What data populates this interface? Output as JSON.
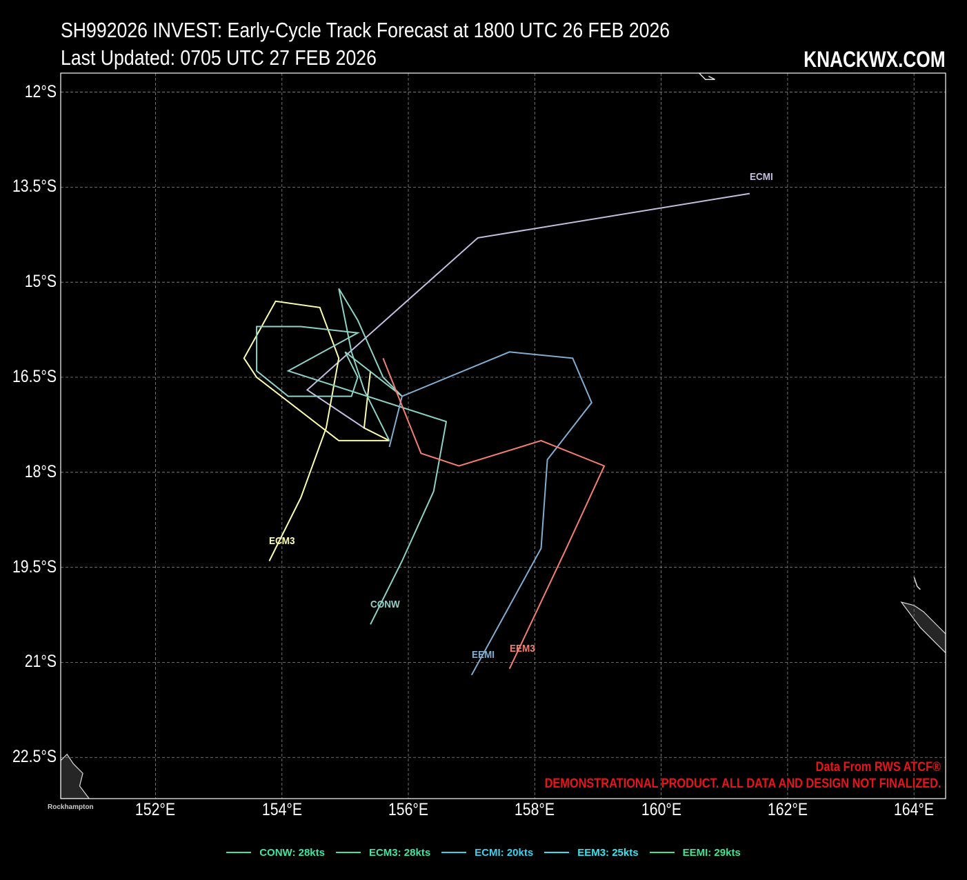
{
  "header": {
    "title_line1": "SH992026 INVEST: Early-Cycle Track Forecast at 1800 UTC 26 FEB 2026",
    "title_line2": "Last Updated: 0705 UTC 27 FEB 2026",
    "brand": "KNACKWX.COM"
  },
  "map": {
    "lon_range": [
      150.5,
      164.5
    ],
    "lat_range": [
      -23.15,
      -11.7
    ],
    "lat_ticks": [
      {
        "value": -12,
        "label": "12°S"
      },
      {
        "value": -13.5,
        "label": "13.5°S"
      },
      {
        "value": -15,
        "label": "15°S"
      },
      {
        "value": -16.5,
        "label": "16.5°S"
      },
      {
        "value": -18,
        "label": "18°S"
      },
      {
        "value": -19.5,
        "label": "19.5°S"
      },
      {
        "value": -21,
        "label": "21°S"
      },
      {
        "value": -22.5,
        "label": "22.5°S"
      }
    ],
    "lon_ticks": [
      {
        "value": 152,
        "label": "152°E"
      },
      {
        "value": 154,
        "label": "154°E"
      },
      {
        "value": 156,
        "label": "156°E"
      },
      {
        "value": 158,
        "label": "158°E"
      },
      {
        "value": 160,
        "label": "160°E"
      },
      {
        "value": 162,
        "label": "162°E"
      },
      {
        "value": 164,
        "label": "164°E"
      }
    ],
    "grid": true,
    "city_label": "Rockhampton"
  },
  "tracks": [
    {
      "id": "ECMI",
      "label": "ECMI",
      "color": "#c3bfe0",
      "points": [
        [
          155.3,
          -17.3
        ],
        [
          154.4,
          -16.7
        ],
        [
          157.1,
          -14.3
        ],
        [
          161.4,
          -13.6
        ]
      ]
    },
    {
      "id": "ECM3",
      "label": "ECM3",
      "color": "#fefeb0",
      "points": [
        [
          155.4,
          -16.4
        ],
        [
          155.3,
          -17.3
        ],
        [
          155.7,
          -17.5
        ],
        [
          155.2,
          -17.5
        ],
        [
          154.9,
          -17.5
        ],
        [
          153.6,
          -16.5
        ],
        [
          153.4,
          -16.2
        ],
        [
          153.9,
          -15.3
        ],
        [
          154.6,
          -15.4
        ],
        [
          154.9,
          -16.2
        ],
        [
          154.7,
          -17.3
        ],
        [
          154.3,
          -18.4
        ],
        [
          153.8,
          -19.4
        ]
      ]
    },
    {
      "id": "CONW",
      "label": "CONW",
      "color": "#8fd2c6",
      "points": [
        [
          155.7,
          -17.5
        ],
        [
          155.3,
          -16.7
        ],
        [
          155.1,
          -16.1
        ],
        [
          154.9,
          -15.1
        ],
        [
          155.2,
          -15.6
        ],
        [
          155.6,
          -16.5
        ],
        [
          155.9,
          -16.8
        ],
        [
          155.0,
          -16.1
        ],
        [
          155.2,
          -16.5
        ],
        [
          155.1,
          -16.8
        ],
        [
          154.1,
          -16.8
        ],
        [
          153.6,
          -16.4
        ],
        [
          153.6,
          -15.7
        ],
        [
          154.3,
          -15.7
        ],
        [
          155.2,
          -15.8
        ],
        [
          154.1,
          -16.4
        ],
        [
          156.6,
          -17.2
        ],
        [
          156.4,
          -18.3
        ],
        [
          155.9,
          -19.4
        ],
        [
          155.4,
          -20.4
        ]
      ]
    },
    {
      "id": "EEMI",
      "label": "EEMI",
      "color": "#82aed2",
      "points": [
        [
          155.7,
          -17.6
        ],
        [
          155.9,
          -16.8
        ],
        [
          157.6,
          -16.1
        ],
        [
          158.6,
          -16.2
        ],
        [
          158.9,
          -16.9
        ],
        [
          158.2,
          -17.8
        ],
        [
          158.1,
          -19.2
        ],
        [
          157.0,
          -21.2
        ]
      ]
    },
    {
      "id": "EEM3",
      "label": "EEM3",
      "color": "#f57f73",
      "points": [
        [
          155.6,
          -16.2
        ],
        [
          156.2,
          -17.7
        ],
        [
          156.8,
          -17.9
        ],
        [
          158.1,
          -17.5
        ],
        [
          159.1,
          -17.9
        ],
        [
          158.5,
          -19.2
        ],
        [
          157.6,
          -21.1
        ]
      ]
    }
  ],
  "track_labels": [
    {
      "id": "ECMI",
      "lon": 161.4,
      "lat": -13.35
    },
    {
      "id": "ECM3",
      "lon": 153.8,
      "lat": -19.1
    },
    {
      "id": "CONW",
      "lon": 155.4,
      "lat": -20.1
    },
    {
      "id": "EEMI",
      "lon": 157.0,
      "lat": -20.9
    },
    {
      "id": "EEM3",
      "lon": 157.6,
      "lat": -20.8
    }
  ],
  "coast": [
    [
      [
        150.5,
        -22.55
      ],
      [
        150.6,
        -22.45
      ],
      [
        150.7,
        -22.6
      ],
      [
        150.85,
        -22.75
      ],
      [
        150.8,
        -22.95
      ],
      [
        150.95,
        -23.15
      ],
      [
        150.5,
        -23.15
      ]
    ],
    [
      [
        163.8,
        -20.05
      ],
      [
        163.95,
        -20.25
      ],
      [
        164.1,
        -20.45
      ],
      [
        164.3,
        -20.65
      ],
      [
        164.5,
        -20.85
      ],
      [
        164.5,
        -20.55
      ],
      [
        164.3,
        -20.35
      ],
      [
        164.15,
        -20.2
      ],
      [
        164.0,
        -20.1
      ]
    ]
  ],
  "islands": [
    [
      [
        160.6,
        -11.7
      ],
      [
        160.7,
        -11.8
      ],
      [
        160.85,
        -11.8
      ],
      [
        160.75,
        -11.75
      ]
    ],
    [
      [
        164.0,
        -19.65
      ],
      [
        164.05,
        -19.8
      ],
      [
        164.1,
        -19.85
      ]
    ]
  ],
  "disclaimer": {
    "line1": "Data From RWS ATCF®",
    "line2": "DEMONSTRATIONAL PRODUCT. ALL DATA AND DESIGN NOT FINALIZED."
  },
  "legend": [
    {
      "label": "CONW: 28kts",
      "color": "#3de6a3"
    },
    {
      "label": "ECM3: 28kts",
      "color": "#3de6a3"
    },
    {
      "label": "ECMI: 20kts",
      "color": "#3ad2f0"
    },
    {
      "label": "EEM3: 25kts",
      "color": "#33e6f2"
    },
    {
      "label": "EEMI: 29kts",
      "color": "#3de690"
    }
  ],
  "colors": {
    "background": "#000000",
    "grid": "#8c8c8c",
    "land": "#262626",
    "disclaimer": "#e8141b"
  }
}
